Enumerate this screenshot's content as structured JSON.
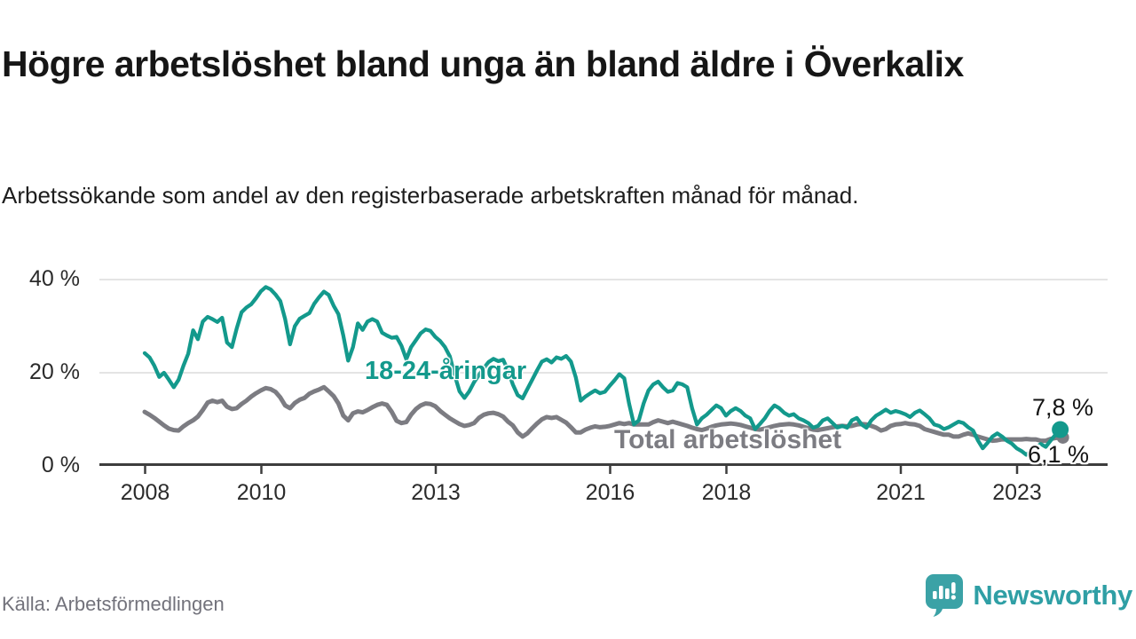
{
  "header": {
    "title": "Högre arbetslöshet bland unga än bland äldre i Överkalix",
    "subtitle": "Arbetssökande som andel av den registerbaserade arbetskraften månad för månad."
  },
  "footer": {
    "source": "Källa: Arbetsförmedlingen",
    "brand": "Newsworthy"
  },
  "colors": {
    "youth": "#13998c",
    "total": "#7c7c82",
    "axis": "#3d3d3d",
    "grid": "#dcdcdc",
    "brand_teal": "#3ba2a6"
  },
  "chart_data": {
    "type": "line",
    "unit": "%",
    "frequency": "monthly",
    "x_start": "2008-01",
    "x_end": "2023-10",
    "x_tick_years": [
      2008,
      2010,
      2013,
      2016,
      2018,
      2021,
      2023
    ],
    "y_ticks": [
      0,
      20,
      40
    ],
    "y_tick_labels": [
      "0 %",
      "20 %",
      "40 %"
    ],
    "ylim": [
      0,
      42
    ],
    "grid": "horizontal",
    "legend_position": "inline-labels",
    "series": [
      {
        "name": "Total arbetslöshet",
        "color": "#7c7c82",
        "end_label": "6,1 %",
        "end_value": 6.1,
        "values": [
          11.6,
          11.0,
          10.3,
          9.5,
          8.7,
          8.0,
          7.7,
          7.6,
          8.5,
          9.2,
          9.8,
          10.6,
          12.0,
          13.6,
          14.0,
          13.7,
          14.0,
          12.7,
          12.2,
          12.4,
          13.3,
          14.0,
          14.9,
          15.6,
          16.2,
          16.7,
          16.5,
          15.9,
          14.7,
          13.0,
          12.4,
          13.5,
          14.2,
          14.6,
          15.5,
          16.0,
          16.4,
          16.9,
          16.0,
          15.0,
          13.4,
          10.8,
          9.8,
          11.3,
          11.7,
          11.5,
          12.0,
          12.6,
          13.1,
          13.4,
          13.1,
          11.6,
          9.7,
          9.2,
          9.4,
          11.0,
          12.2,
          13.0,
          13.4,
          13.3,
          12.8,
          11.8,
          11.0,
          10.2,
          9.6,
          9.0,
          8.6,
          8.8,
          9.2,
          10.3,
          11.0,
          11.3,
          11.4,
          11.1,
          10.6,
          9.5,
          8.7,
          7.2,
          6.3,
          7.0,
          8.1,
          9.1,
          10.0,
          10.5,
          10.3,
          10.5,
          9.9,
          9.3,
          8.3,
          7.2,
          7.2,
          7.8,
          8.2,
          8.5,
          8.3,
          8.4,
          8.6,
          8.9,
          9.2,
          9.0,
          9.2,
          8.9,
          8.9,
          8.9,
          8.9,
          9.4,
          9.8,
          9.5,
          9.2,
          9.5,
          9.2,
          8.9,
          8.6,
          8.2,
          7.9,
          7.7,
          8.0,
          8.4,
          8.7,
          8.9,
          9.0,
          9.1,
          9.0,
          8.8,
          8.5,
          8.2,
          7.9,
          7.8,
          8.0,
          8.3,
          8.6,
          8.8,
          8.9,
          9.0,
          8.9,
          8.7,
          8.4,
          8.1,
          7.8,
          7.7,
          7.9,
          8.1,
          8.3,
          8.5,
          8.6,
          8.5,
          8.6,
          8.9,
          9.0,
          8.9,
          8.6,
          8.2,
          7.6,
          7.9,
          8.6,
          8.9,
          9.0,
          9.2,
          9.0,
          8.9,
          8.6,
          7.9,
          7.6,
          7.3,
          7.0,
          6.7,
          6.7,
          6.3,
          6.3,
          6.7,
          7.0,
          6.7,
          6.3,
          6.0,
          5.7,
          5.4,
          5.5,
          5.7,
          5.7,
          5.7,
          5.7,
          5.7,
          5.8,
          5.7,
          5.7,
          5.4,
          5.4,
          5.8,
          6.0,
          6.1
        ]
      },
      {
        "name": "18-24-åringar",
        "color": "#13998c",
        "end_label": "7,8 %",
        "end_value": 7.8,
        "values": [
          24.2,
          23.3,
          21.5,
          19.1,
          20.0,
          18.5,
          16.9,
          18.5,
          21.5,
          24.1,
          29.1,
          27.2,
          31.0,
          32.0,
          31.5,
          30.9,
          31.8,
          26.5,
          25.5,
          29.5,
          33.0,
          34.0,
          34.7,
          36.0,
          37.5,
          38.4,
          37.9,
          36.8,
          35.4,
          31.5,
          26.1,
          30.0,
          31.6,
          32.2,
          32.8,
          34.8,
          36.2,
          37.4,
          36.7,
          34.4,
          32.6,
          28.0,
          22.6,
          25.5,
          30.6,
          29.2,
          31.0,
          31.5,
          31.0,
          28.6,
          28.0,
          27.5,
          27.7,
          25.8,
          22.9,
          25.5,
          27.0,
          28.5,
          29.3,
          29.0,
          27.7,
          26.8,
          25.5,
          23.5,
          19.5,
          16.0,
          14.6,
          16.0,
          18.0,
          19.5,
          21.0,
          22.3,
          23.0,
          22.5,
          22.8,
          20.5,
          17.5,
          15.2,
          14.5,
          16.5,
          18.5,
          20.5,
          22.4,
          22.9,
          22.2,
          23.3,
          23.0,
          23.6,
          22.4,
          19.0,
          14.0,
          14.9,
          15.6,
          16.2,
          15.6,
          15.9,
          17.2,
          18.4,
          19.7,
          18.8,
          13.4,
          8.9,
          9.8,
          13.4,
          16.2,
          17.5,
          18.1,
          16.9,
          15.9,
          16.2,
          17.8,
          17.5,
          16.9,
          12.4,
          8.9,
          10.2,
          11.0,
          12.0,
          13.0,
          12.4,
          10.8,
          11.8,
          12.4,
          11.8,
          10.8,
          10.2,
          7.9,
          9.0,
          10.2,
          11.8,
          13.0,
          12.4,
          11.4,
          10.8,
          11.1,
          10.2,
          9.8,
          9.2,
          8.2,
          8.6,
          9.8,
          10.2,
          9.2,
          8.2,
          8.6,
          8.2,
          9.8,
          10.3,
          8.9,
          8.2,
          9.8,
          10.8,
          11.4,
          12.1,
          11.4,
          11.8,
          11.5,
          11.1,
          10.5,
          11.4,
          11.9,
          11.1,
          10.2,
          8.9,
          8.6,
          7.9,
          8.3,
          8.9,
          9.5,
          9.2,
          8.3,
          7.6,
          5.5,
          3.8,
          5.0,
          6.3,
          7.0,
          6.3,
          5.4,
          4.8,
          3.8,
          3.2,
          2.4,
          3.3,
          4.0,
          4.7,
          4.1,
          5.4,
          6.7,
          7.8
        ]
      }
    ]
  }
}
